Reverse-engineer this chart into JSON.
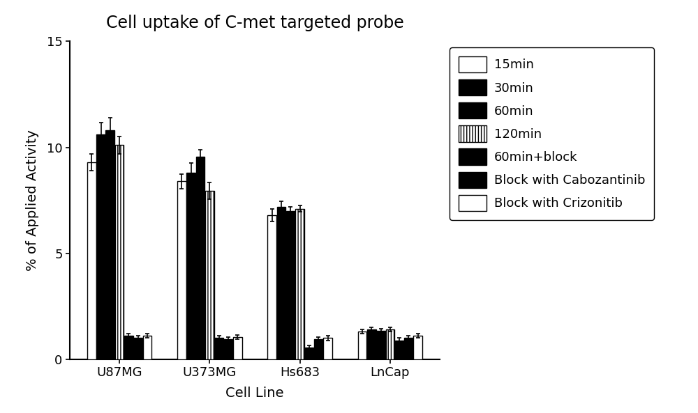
{
  "title": "Cell uptake of C-met targeted probe",
  "xlabel": "Cell Line",
  "ylabel": "% of Applied Activity",
  "ylim": [
    0,
    15
  ],
  "yticks": [
    0,
    5,
    10,
    15
  ],
  "cell_lines": [
    "U87MG",
    "U373MG",
    "Hs683",
    "LnCap"
  ],
  "series_labels": [
    "15min",
    "30min",
    "60min",
    "120min",
    "60min+block",
    "Block with Cabozantinib",
    "Block with Crizonitib"
  ],
  "values": {
    "U87MG": [
      9.3,
      10.6,
      10.8,
      10.1,
      1.1,
      1.0,
      1.1
    ],
    "U373MG": [
      8.4,
      8.8,
      9.55,
      7.95,
      1.0,
      0.95,
      1.05
    ],
    "Hs683": [
      6.8,
      7.2,
      7.0,
      7.1,
      0.55,
      0.95,
      1.0
    ],
    "LnCap": [
      1.3,
      1.4,
      1.35,
      1.4,
      0.9,
      1.0,
      1.1
    ]
  },
  "errors": {
    "U87MG": [
      0.4,
      0.55,
      0.6,
      0.4,
      0.1,
      0.1,
      0.1
    ],
    "U373MG": [
      0.35,
      0.45,
      0.35,
      0.4,
      0.1,
      0.1,
      0.1
    ],
    "Hs683": [
      0.3,
      0.25,
      0.2,
      0.15,
      0.1,
      0.1,
      0.1
    ],
    "LnCap": [
      0.1,
      0.1,
      0.1,
      0.1,
      0.1,
      0.1,
      0.1
    ]
  },
  "bar_styles": [
    {
      "facecolor": "white",
      "hatch": "",
      "edgecolor": "black",
      "linewidth": 1.0
    },
    {
      "facecolor": "black",
      "hatch": "",
      "edgecolor": "black",
      "linewidth": 1.0
    },
    {
      "facecolor": "black",
      "hatch": "oo",
      "edgecolor": "black",
      "linewidth": 1.0
    },
    {
      "facecolor": "white",
      "hatch": "||||",
      "edgecolor": "black",
      "linewidth": 1.0
    },
    {
      "facecolor": "black",
      "hatch": "////",
      "edgecolor": "black",
      "linewidth": 1.0
    },
    {
      "facecolor": "black",
      "hatch": "\\\\\\\\",
      "edgecolor": "black",
      "linewidth": 1.0
    },
    {
      "facecolor": "white",
      "hatch": "####",
      "edgecolor": "black",
      "linewidth": 1.0
    }
  ],
  "background_color": "#ffffff",
  "error_color": "#000000",
  "title_fontsize": 17,
  "axis_fontsize": 14,
  "tick_fontsize": 13,
  "legend_fontsize": 13,
  "group_width": 0.72
}
